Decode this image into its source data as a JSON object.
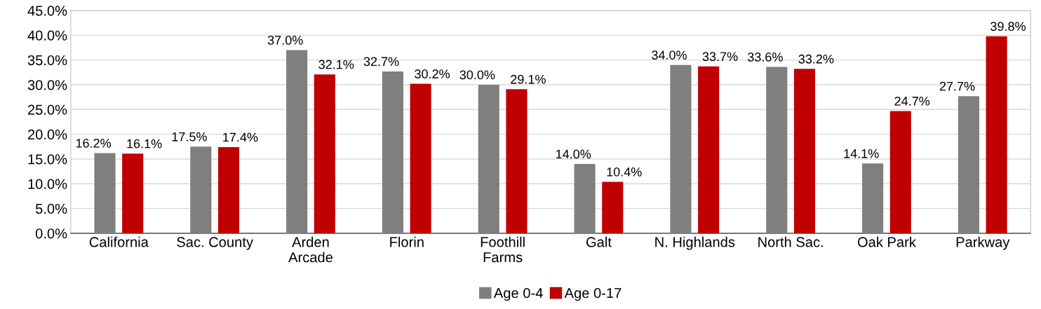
{
  "chart_data": {
    "type": "bar",
    "categories": [
      "California",
      "Sac. County",
      "Arden\nArcade",
      "Florin",
      "Foothill\nFarms",
      "Galt",
      "N. Highlands",
      "North Sac.",
      "Oak Park",
      "Parkway"
    ],
    "series": [
      {
        "name": "Age 0-4",
        "color": "#7f7f7f",
        "values": [
          16.2,
          17.5,
          37.0,
          32.7,
          30.0,
          14.0,
          34.0,
          33.6,
          14.1,
          27.7
        ],
        "value_labels": [
          "16.2%",
          "17.5%",
          "37.0%",
          "32.7%",
          "30.0%",
          "14.0%",
          "34.0%",
          "33.6%",
          "14.1%",
          "27.7%"
        ]
      },
      {
        "name": "Age 0-17",
        "color": "#c00000",
        "values": [
          16.1,
          17.4,
          32.1,
          30.2,
          29.1,
          10.4,
          33.7,
          33.2,
          24.7,
          39.8
        ],
        "value_labels": [
          "16.1%",
          "17.4%",
          "32.1%",
          "30.2%",
          "29.1%",
          "10.4%",
          "33.7%",
          "33.2%",
          "24.7%",
          "39.8%"
        ]
      }
    ],
    "ylim": [
      0,
      45
    ],
    "yticks": [
      {
        "value": 0,
        "label": "0.0%"
      },
      {
        "value": 5,
        "label": "5.0%"
      },
      {
        "value": 10,
        "label": "10.0%"
      },
      {
        "value": 15,
        "label": "15.0%"
      },
      {
        "value": 20,
        "label": "20.0%"
      },
      {
        "value": 25,
        "label": "25.0%"
      },
      {
        "value": 30,
        "label": "30.0%"
      },
      {
        "value": 35,
        "label": "35.0%"
      },
      {
        "value": 40,
        "label": "40.0%"
      },
      {
        "value": 45,
        "label": "45.0%"
      }
    ],
    "grid": "y",
    "legend": "bottom"
  }
}
